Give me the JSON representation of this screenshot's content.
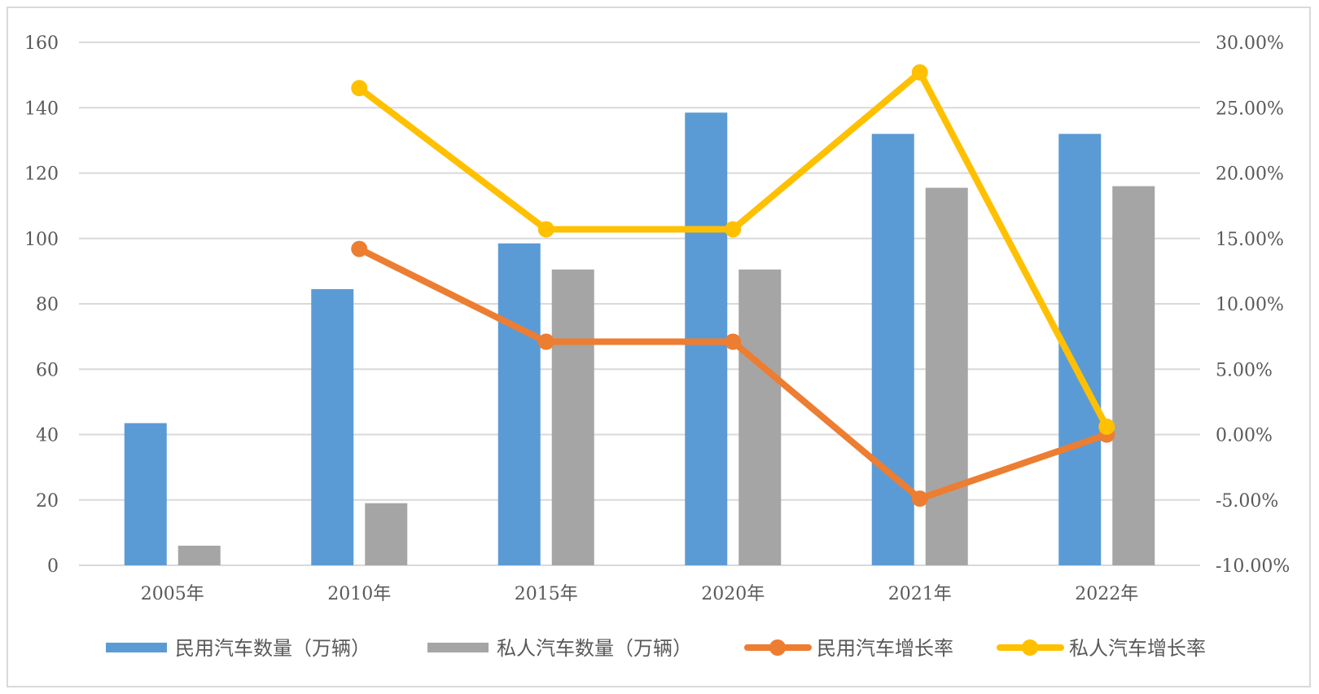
{
  "chart_data": {
    "type": "bar",
    "categories": [
      "2005年",
      "2010年",
      "2015年",
      "2020年",
      "2021年",
      "2022年"
    ],
    "series": [
      {
        "name": "民用汽车数量（万辆）",
        "kind": "bar",
        "axis": "left",
        "color": "#5b9bd5",
        "values": [
          43.5,
          84.5,
          98.5,
          138.5,
          132,
          132
        ]
      },
      {
        "name": "私人汽车数量（万辆）",
        "kind": "bar",
        "axis": "left",
        "color": "#a5a5a5",
        "values": [
          6,
          19,
          90.5,
          90.5,
          115.5,
          116
        ]
      },
      {
        "name": "民用汽车增长率",
        "kind": "line",
        "axis": "right",
        "color": "#ed7d31",
        "values": [
          null,
          14.2,
          7.1,
          7.1,
          -4.9,
          0
        ]
      },
      {
        "name": "私人汽车增长率",
        "kind": "line",
        "axis": "right",
        "color": "#ffc000",
        "values": [
          null,
          26.5,
          15.7,
          15.7,
          27.7,
          0.6
        ]
      }
    ],
    "left_axis": {
      "min": 0,
      "max": 160,
      "ticks": [
        "0",
        "20",
        "40",
        "60",
        "80",
        "100",
        "120",
        "140",
        "160"
      ]
    },
    "right_axis": {
      "min": -10,
      "max": 30,
      "unit": "%",
      "ticks": [
        "-10.00%",
        "-5.00%",
        "0.00%",
        "5.00%",
        "10.00%",
        "15.00%",
        "20.00%",
        "25.00%",
        "30.00%"
      ]
    },
    "grid": true,
    "legend_position": "bottom"
  }
}
